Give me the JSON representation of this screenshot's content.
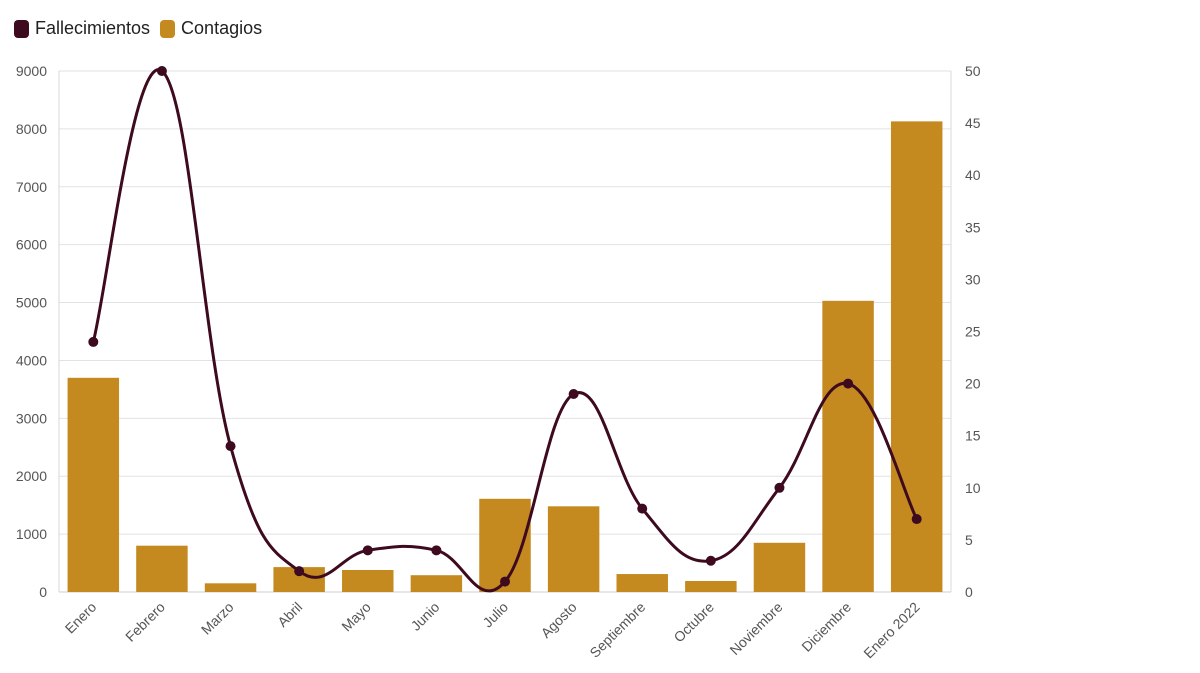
{
  "legend": {
    "items": [
      {
        "label": "Fallecimientos",
        "color": "#3d0a1f"
      },
      {
        "label": "Contagios",
        "color": "#c4891f"
      }
    ]
  },
  "chart_data": {
    "type": "bar",
    "categories": [
      "Enero",
      "Febrero",
      "Marzo",
      "Abril",
      "Mayo",
      "Junio",
      "Julio",
      "Agosto",
      "Septiembre",
      "Octubre",
      "Noviembre",
      "Diciembre",
      "Enero 2022"
    ],
    "series": [
      {
        "name": "Contagios",
        "type": "bar",
        "axis": "left",
        "color": "#c4891f",
        "values": [
          3700,
          800,
          150,
          430,
          380,
          290,
          1610,
          1480,
          310,
          190,
          850,
          5030,
          8130
        ]
      },
      {
        "name": "Fallecimientos",
        "type": "line",
        "axis": "right",
        "color": "#3d0a1f",
        "values": [
          24,
          50,
          14,
          2,
          4,
          4,
          1,
          19,
          8,
          3,
          10,
          20,
          7
        ]
      }
    ],
    "y_left": {
      "min": 0,
      "max": 9000,
      "ticks": [
        0,
        1000,
        2000,
        3000,
        4000,
        5000,
        6000,
        7000,
        8000,
        9000
      ]
    },
    "y_right": {
      "min": 0,
      "max": 50,
      "ticks": [
        0,
        5,
        10,
        15,
        20,
        25,
        30,
        35,
        40,
        45,
        50
      ]
    },
    "grid": true,
    "legend_position": "top-left",
    "title": "",
    "xlabel": "",
    "ylabel": ""
  }
}
